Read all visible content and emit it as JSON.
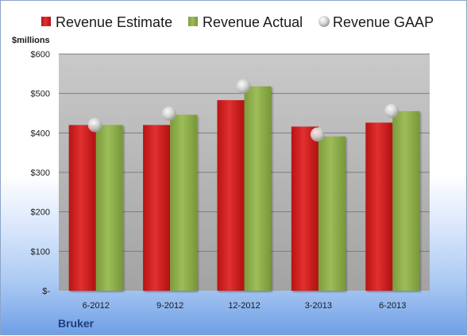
{
  "chart_data": {
    "type": "bar",
    "unit_label": "$millions",
    "company": "Bruker",
    "categories": [
      "6-2012",
      "9-2012",
      "12-2012",
      "3-2013",
      "6-2013"
    ],
    "series": [
      {
        "name": "Revenue Estimate",
        "type": "bar",
        "color": "#cc1f1f",
        "values": [
          420,
          420,
          483,
          416,
          426
        ]
      },
      {
        "name": "Revenue Actual",
        "type": "bar",
        "color": "#8faf4c",
        "values": [
          420,
          446,
          518,
          391,
          455
        ]
      },
      {
        "name": "Revenue GAAP",
        "type": "scatter",
        "color": "#c8c8c8",
        "values": [
          420,
          449,
          518,
          396,
          456
        ]
      }
    ],
    "ylim": [
      0,
      600
    ],
    "y_ticks": [
      0,
      100,
      200,
      300,
      400,
      500,
      600
    ],
    "y_tick_labels": [
      "$-",
      "$100",
      "$200",
      "$300",
      "$400",
      "$500",
      "$600"
    ],
    "grid": true,
    "legend": "top"
  }
}
